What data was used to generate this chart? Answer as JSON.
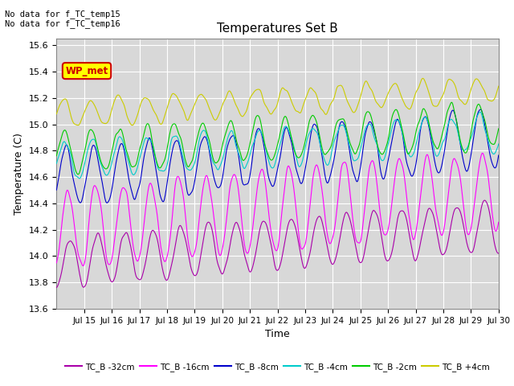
{
  "title": "Temperatures Set B",
  "xlabel": "Time",
  "ylabel": "Temperature (C)",
  "ylim": [
    13.6,
    15.65
  ],
  "yticks": [
    13.6,
    13.8,
    14.0,
    14.2,
    14.4,
    14.6,
    14.8,
    15.0,
    15.2,
    15.4,
    15.6
  ],
  "xticklabels": [
    "Jul 15",
    "Jul 16",
    "Jul 17",
    "Jul 18",
    "Jul 19",
    "Jul 20",
    "Jul 21",
    "Jul 22",
    "Jul 23",
    "Jul 24",
    "Jul 25",
    "Jul 26",
    "Jul 27",
    "Jul 28",
    "Jul 29",
    "Jul 30"
  ],
  "annotation_text": "No data for f_TC_temp15\nNo data for f_TC_temp16",
  "legend_label": "WP_met",
  "legend_box_color": "#ffff00",
  "legend_text_color": "#cc0000",
  "series": [
    {
      "label": "TC_B -32cm",
      "color": "#aa00aa",
      "base": 13.95,
      "amplitude": 0.19,
      "trend": 0.28,
      "phase": 0.0,
      "noise_amp": 0.04
    },
    {
      "label": "TC_B -16cm",
      "color": "#ff00ff",
      "base": 14.2,
      "amplitude": 0.3,
      "trend": 0.3,
      "phase": 0.5,
      "noise_amp": 0.06
    },
    {
      "label": "TC_B -8cm",
      "color": "#0000cc",
      "base": 14.6,
      "amplitude": 0.22,
      "trend": 0.3,
      "phase": 1.0,
      "noise_amp": 0.06
    },
    {
      "label": "TC_B -4cm",
      "color": "#00cccc",
      "base": 14.72,
      "amplitude": 0.14,
      "trend": 0.22,
      "phase": 1.2,
      "noise_amp": 0.05
    },
    {
      "label": "TC_B -2cm",
      "color": "#00cc00",
      "base": 14.78,
      "amplitude": 0.16,
      "trend": 0.22,
      "phase": 1.4,
      "noise_amp": 0.05
    },
    {
      "label": "TC_B +4cm",
      "color": "#cccc00",
      "base": 15.08,
      "amplitude": 0.1,
      "trend": 0.18,
      "phase": 1.6,
      "noise_amp": 0.04
    }
  ],
  "bg_color": "#d8d8d8",
  "grid_color": "#ffffff",
  "fig_bg": "#ffffff",
  "figsize": [
    6.4,
    4.8
  ],
  "dpi": 100
}
